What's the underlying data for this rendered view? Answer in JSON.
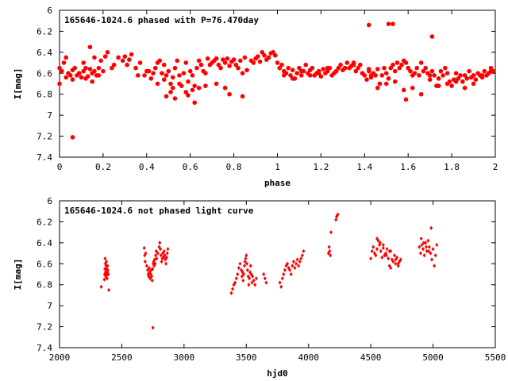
{
  "chart_data": [
    {
      "type": "scatter",
      "title": "165646-1024.6 phased with P=76.470day",
      "xlabel": "phase",
      "ylabel": "I[mag]",
      "xlim": [
        0,
        2
      ],
      "ylim": [
        7.4,
        6
      ],
      "y_inverted": true,
      "grid": false,
      "legend": "none",
      "marker_color": "#ff0000",
      "marker": "filled-circle",
      "x_ticks": [
        0,
        0.2,
        0.4,
        0.6,
        0.8,
        1,
        1.2,
        1.4,
        1.6,
        1.8,
        2
      ],
      "x_tick_labels": [
        "0",
        "0.2",
        "0.4",
        "0.6",
        "0.8",
        "1",
        "1.2",
        "1.4",
        "1.6",
        "1.8",
        "2"
      ],
      "y_ticks": [
        6,
        6.2,
        6.4,
        6.6,
        6.8,
        7,
        7.2,
        7.4
      ],
      "y_tick_labels": [
        "6",
        "6.2",
        "6.4",
        "6.6",
        "6.8",
        "7",
        "7.2",
        "7.4"
      ],
      "series": [
        {
          "x": [
            0.0,
            0.01,
            0.02,
            0.03,
            0.04,
            0.05,
            0.06,
            0.07,
            0.08,
            0.09,
            0.1,
            0.11,
            0.12,
            0.13,
            0.14,
            0.15,
            0.16,
            0.17,
            0.18,
            0.19,
            0.2,
            0.21,
            0.22,
            0.25,
            0.27,
            0.29,
            0.3,
            0.31,
            0.32,
            0.33,
            0.35,
            0.37,
            0.39,
            0.41,
            0.42,
            0.43,
            0.44,
            0.45,
            0.46,
            0.47,
            0.48,
            0.49,
            0.5,
            0.51,
            0.52,
            0.53,
            0.54,
            0.55,
            0.56,
            0.57,
            0.58,
            0.59,
            0.6,
            0.61,
            0.62,
            0.63,
            0.64,
            0.65,
            0.66,
            0.67,
            0.68,
            0.69,
            0.7,
            0.71,
            0.72,
            0.73,
            0.74,
            0.75,
            0.76,
            0.77,
            0.78,
            0.79,
            0.8,
            0.81,
            0.82,
            0.83,
            0.84,
            0.85,
            0.86,
            0.88,
            0.89,
            0.9,
            0.91,
            0.92,
            0.93,
            0.94,
            0.95,
            0.96,
            0.97,
            0.98,
            0.99,
            1.0,
            1.01,
            1.02,
            1.03,
            1.04,
            1.05,
            1.06,
            1.07,
            1.08,
            1.09,
            1.1,
            1.11,
            1.12,
            1.13,
            1.14,
            1.15,
            1.16,
            1.17,
            1.18,
            1.19,
            1.2,
            1.21,
            1.22,
            1.23,
            1.24,
            1.25,
            1.26,
            1.27,
            1.28,
            1.29,
            1.3,
            1.31,
            1.32,
            1.33,
            1.34,
            1.35,
            1.36,
            1.37,
            1.38,
            1.39,
            1.4,
            1.41,
            1.42,
            1.43,
            1.44,
            1.45,
            1.46,
            1.47,
            1.48,
            1.49,
            1.5,
            1.51,
            1.52,
            1.53,
            1.54,
            1.55,
            1.56,
            1.57,
            1.58,
            1.59,
            1.6,
            1.61,
            1.62,
            1.63,
            1.64,
            1.65,
            1.66,
            1.67,
            1.68,
            1.69,
            1.7,
            1.71,
            1.72,
            1.73,
            1.74,
            1.75,
            1.76,
            1.77,
            1.78,
            1.79,
            1.8,
            1.81,
            1.82,
            1.83,
            1.84,
            1.85,
            1.86,
            1.87,
            1.88,
            1.89,
            1.9,
            1.91,
            1.92,
            1.93,
            1.94,
            1.95,
            1.96,
            1.97,
            1.98,
            1.99,
            0.0,
            0.03,
            0.06,
            0.09,
            0.12,
            0.15,
            0.18,
            0.24,
            0.36,
            0.4,
            0.45,
            0.48,
            0.52,
            0.55,
            0.58,
            0.61,
            0.64,
            0.67,
            0.72,
            0.76,
            1.03,
            1.07,
            1.11,
            1.15,
            1.19,
            1.23,
            1.27,
            1.31,
            1.35,
            1.39,
            1.42,
            1.43,
            1.46,
            1.5,
            1.54,
            1.58,
            1.62,
            1.66,
            1.7,
            1.74,
            1.78,
            1.82,
            1.86,
            1.9,
            1.94,
            1.98,
            0.06,
            0.11,
            0.14,
            0.16,
            0.49,
            0.51,
            0.53,
            0.59,
            0.62,
            0.78,
            0.84,
            1.42,
            1.51,
            1.53,
            1.59,
            1.71
          ],
          "y": [
            6.55,
            6.58,
            6.5,
            6.45,
            6.6,
            6.62,
            6.57,
            6.55,
            6.62,
            6.6,
            6.64,
            6.58,
            6.55,
            6.63,
            6.56,
            6.6,
            6.58,
            6.62,
            6.55,
            6.48,
            6.58,
            6.44,
            6.4,
            6.52,
            6.45,
            6.48,
            6.44,
            6.52,
            6.47,
            6.42,
            6.55,
            6.5,
            6.62,
            6.58,
            6.65,
            6.6,
            6.55,
            6.5,
            6.48,
            6.6,
            6.52,
            6.62,
            6.58,
            6.7,
            6.64,
            6.55,
            6.48,
            6.62,
            6.72,
            6.6,
            6.5,
            6.68,
            6.58,
            6.62,
            6.72,
            6.55,
            6.48,
            6.52,
            6.58,
            6.6,
            6.46,
            6.52,
            6.5,
            6.48,
            6.46,
            6.52,
            6.55,
            6.47,
            6.5,
            6.46,
            6.53,
            6.49,
            6.47,
            6.52,
            6.55,
            6.48,
            6.6,
            6.45,
            6.57,
            6.48,
            6.5,
            6.46,
            6.44,
            6.49,
            6.4,
            6.43,
            6.47,
            6.45,
            6.41,
            6.4,
            6.43,
            6.5,
            6.55,
            6.52,
            6.58,
            6.6,
            6.55,
            6.62,
            6.57,
            6.65,
            6.6,
            6.55,
            6.62,
            6.58,
            6.52,
            6.6,
            6.57,
            6.55,
            6.62,
            6.6,
            6.58,
            6.63,
            6.56,
            6.6,
            6.58,
            6.55,
            6.62,
            6.6,
            6.58,
            6.55,
            6.52,
            6.57,
            6.55,
            6.5,
            6.55,
            6.53,
            6.5,
            6.58,
            6.55,
            6.52,
            6.6,
            6.62,
            6.66,
            6.58,
            6.64,
            6.6,
            6.62,
            6.56,
            6.7,
            6.62,
            6.55,
            6.6,
            6.65,
            6.55,
            6.52,
            6.58,
            6.5,
            6.55,
            6.52,
            6.48,
            6.5,
            6.55,
            6.58,
            6.62,
            6.6,
            6.55,
            6.62,
            6.5,
            6.58,
            6.55,
            6.6,
            6.62,
            6.58,
            6.62,
            6.72,
            6.65,
            6.58,
            6.62,
            6.55,
            6.6,
            6.68,
            6.72,
            6.66,
            6.6,
            6.65,
            6.62,
            6.68,
            6.62,
            6.65,
            6.58,
            6.64,
            6.62,
            6.66,
            6.6,
            6.62,
            6.64,
            6.58,
            6.62,
            6.6,
            6.55,
            6.58,
            6.7,
            6.64,
            6.66,
            6.6,
            6.65,
            6.68,
            6.62,
            6.55,
            6.62,
            6.58,
            6.7,
            6.66,
            6.74,
            6.7,
            6.78,
            6.76,
            6.74,
            6.72,
            6.7,
            6.74,
            6.62,
            6.65,
            6.58,
            6.62,
            6.6,
            6.55,
            6.58,
            6.55,
            6.52,
            6.6,
            6.56,
            6.62,
            6.74,
            6.7,
            6.68,
            6.76,
            6.74,
            6.8,
            6.66,
            6.72,
            6.7,
            6.68,
            6.74,
            6.7,
            6.62,
            6.58,
            7.21,
            6.5,
            6.35,
            6.45,
            6.82,
            6.78,
            6.84,
            6.81,
            6.88,
            6.8,
            6.82,
            6.14,
            6.13,
            6.13,
            6.85,
            6.25
          ]
        }
      ]
    },
    {
      "type": "scatter",
      "title": "165646-1024.6 not phased light curve",
      "xlabel": "hjd0",
      "ylabel": "I[mag]",
      "xlim": [
        2000,
        5500
      ],
      "ylim": [
        7.4,
        6
      ],
      "y_inverted": true,
      "grid": false,
      "legend": "none",
      "marker_color": "#ff0000",
      "marker": "small-diamond",
      "x_ticks": [
        2000,
        2500,
        3000,
        3500,
        4000,
        4500,
        5000,
        5500
      ],
      "x_tick_labels": [
        "2000",
        "2500",
        "3000",
        "3500",
        "4000",
        "4500",
        "5000",
        "5500"
      ],
      "y_ticks": [
        6,
        6.2,
        6.4,
        6.6,
        6.8,
        7,
        7.2,
        7.4
      ],
      "y_tick_labels": [
        "6",
        "6.2",
        "6.4",
        "6.6",
        "6.8",
        "7",
        "7.2",
        "7.4"
      ],
      "series": [
        {
          "x": [
            2335,
            2360,
            2362,
            2364,
            2366,
            2368,
            2370,
            2372,
            2374,
            2376,
            2378,
            2380,
            2382,
            2384,
            2386,
            2388,
            2392,
            2396,
            2680,
            2684,
            2688,
            2692,
            2700,
            2708,
            2712,
            2716,
            2720,
            2724,
            2728,
            2732,
            2736,
            2740,
            2744,
            2748,
            2752,
            2756,
            2760,
            2764,
            2768,
            2772,
            2776,
            2780,
            2790,
            2800,
            2805,
            2810,
            2815,
            2820,
            2825,
            2830,
            2835,
            2840,
            2845,
            2850,
            2855,
            2860,
            2865,
            2870,
            2750,
            3380,
            3390,
            3400,
            3410,
            3420,
            3430,
            3440,
            3450,
            3460,
            3465,
            3470,
            3475,
            3480,
            3485,
            3490,
            3495,
            3500,
            3505,
            3510,
            3515,
            3520,
            3525,
            3530,
            3535,
            3540,
            3545,
            3550,
            3560,
            3570,
            3580,
            3640,
            3650,
            3660,
            3770,
            3780,
            3790,
            3800,
            3810,
            3820,
            3830,
            3840,
            3850,
            3860,
            3870,
            3880,
            3890,
            3900,
            3910,
            3920,
            3930,
            3940,
            3950,
            3960,
            4160,
            4165,
            4170,
            4175,
            4180,
            4220,
            4225,
            4230,
            4235,
            4500,
            4510,
            4520,
            4530,
            4540,
            4550,
            4560,
            4570,
            4580,
            4590,
            4600,
            4610,
            4620,
            4630,
            4640,
            4650,
            4660,
            4670,
            4680,
            4690,
            4700,
            4710,
            4720,
            4730,
            4740,
            4550,
            4575,
            4600,
            4625,
            4650,
            4660,
            4700,
            4720,
            4890,
            4900,
            4910,
            4920,
            4930,
            4940,
            4950,
            4960,
            4970,
            4980,
            4990,
            5000,
            5010,
            5020,
            5030,
            4905,
            4925,
            4945,
            4965,
            4985
          ],
          "y": [
            6.82,
            6.75,
            6.7,
            6.65,
            6.55,
            6.6,
            6.68,
            6.72,
            6.62,
            6.58,
            6.65,
            6.7,
            6.74,
            6.68,
            6.62,
            6.66,
            6.7,
            6.85,
            6.45,
            6.52,
            6.58,
            6.5,
            6.62,
            6.66,
            6.7,
            6.72,
            6.64,
            6.68,
            6.74,
            6.7,
            6.66,
            6.72,
            6.76,
            6.65,
            6.6,
            6.58,
            6.62,
            6.56,
            6.6,
            6.52,
            6.48,
            6.55,
            6.5,
            6.44,
            6.4,
            6.46,
            6.52,
            6.58,
            6.55,
            6.5,
            6.54,
            6.48,
            6.52,
            6.56,
            6.6,
            6.54,
            6.5,
            6.46,
            7.21,
            6.88,
            6.84,
            6.8,
            6.78,
            6.74,
            6.7,
            6.64,
            6.6,
            6.66,
            6.72,
            6.68,
            6.76,
            6.7,
            6.62,
            6.58,
            6.55,
            6.52,
            6.6,
            6.66,
            6.72,
            6.8,
            6.74,
            6.68,
            6.62,
            6.7,
            6.78,
            6.72,
            6.76,
            6.8,
            6.74,
            6.7,
            6.74,
            6.78,
            6.78,
            6.82,
            6.74,
            6.7,
            6.66,
            6.62,
            6.6,
            6.64,
            6.66,
            6.7,
            6.62,
            6.58,
            6.64,
            6.6,
            6.56,
            6.62,
            6.58,
            6.55,
            6.52,
            6.48,
            6.5,
            6.44,
            6.48,
            6.52,
            6.3,
            6.18,
            6.15,
            6.14,
            6.13,
            6.55,
            6.48,
            6.44,
            6.5,
            6.52,
            6.46,
            6.38,
            6.42,
            6.48,
            6.54,
            6.45,
            6.52,
            6.5,
            6.46,
            6.55,
            6.62,
            6.48,
            6.56,
            6.58,
            6.52,
            6.6,
            6.54,
            6.62,
            6.58,
            6.56,
            6.36,
            6.4,
            6.42,
            6.52,
            6.48,
            6.64,
            6.56,
            6.6,
            6.44,
            6.5,
            6.42,
            6.46,
            6.52,
            6.4,
            6.48,
            6.38,
            6.44,
            6.5,
            6.56,
            6.46,
            6.62,
            6.52,
            6.42,
            6.36,
            6.4,
            6.44,
            6.48,
            6.26
          ]
        }
      ]
    }
  ]
}
